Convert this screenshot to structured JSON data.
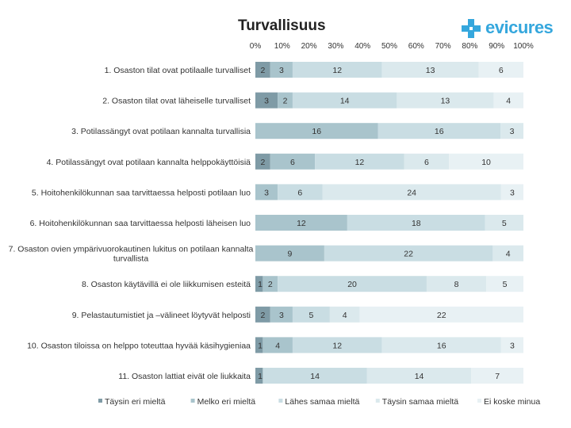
{
  "chart_data": {
    "type": "bar",
    "stacked": "percent",
    "orientation": "horizontal",
    "title": "Turvallisuus",
    "x_ticks": [
      "0%",
      "10%",
      "20%",
      "30%",
      "40%",
      "50%",
      "60%",
      "70%",
      "80%",
      "90%",
      "100%"
    ],
    "categories": [
      "1. Osaston tilat ovat potilaalle turvalliset",
      "2. Osaston tilat ovat läheiselle turvalliset",
      "3. Potilassängyt ovat potilaan kannalta turvallisia",
      "4. Potilassängyt ovat potilaan kannalta helppokäyttöisiä",
      "5. Hoitohenkilökunnan saa tarvittaessa helposti potilaan luo",
      "6. Hoitohenkilökunnan saa tarvittaessa helposti läheisen luo",
      "7. Osaston ovien ympärivuorokautinen lukitus on potilaan kannalta turvallista",
      "8. Osaston käytävillä ei ole liikkumisen esteitä",
      "9. Pelastautumistiet ja –välineet löytyvät helposti",
      "10. Osaston tiloissa on helppo toteuttaa hyvää käsihygieniaa",
      "11. Osaston lattiat eivät ole liukkaita"
    ],
    "series": [
      {
        "name": "Täysin eri mieltä",
        "color": "#7f9ba6",
        "values": [
          2,
          3,
          0,
          2,
          0,
          0,
          0,
          1,
          2,
          1,
          1
        ]
      },
      {
        "name": "Melko eri mieltä",
        "color": "#a9c4cc",
        "values": [
          3,
          2,
          16,
          6,
          3,
          12,
          9,
          2,
          3,
          4,
          0
        ]
      },
      {
        "name": "Lähes samaa mieltä",
        "color": "#c9dde3",
        "values": [
          12,
          14,
          16,
          12,
          6,
          18,
          22,
          20,
          5,
          12,
          14
        ]
      },
      {
        "name": "Täysin samaa mieltä",
        "color": "#dbe9ed",
        "values": [
          13,
          13,
          3,
          6,
          24,
          5,
          4,
          8,
          4,
          16,
          14
        ]
      },
      {
        "name": "Ei koske minua",
        "color": "#e8f1f4",
        "values": [
          6,
          4,
          null,
          10,
          3,
          null,
          null,
          5,
          22,
          3,
          7
        ]
      }
    ],
    "xlim": [
      0,
      100
    ],
    "legend_position": "bottom"
  },
  "logo": {
    "text": "evicures"
  }
}
